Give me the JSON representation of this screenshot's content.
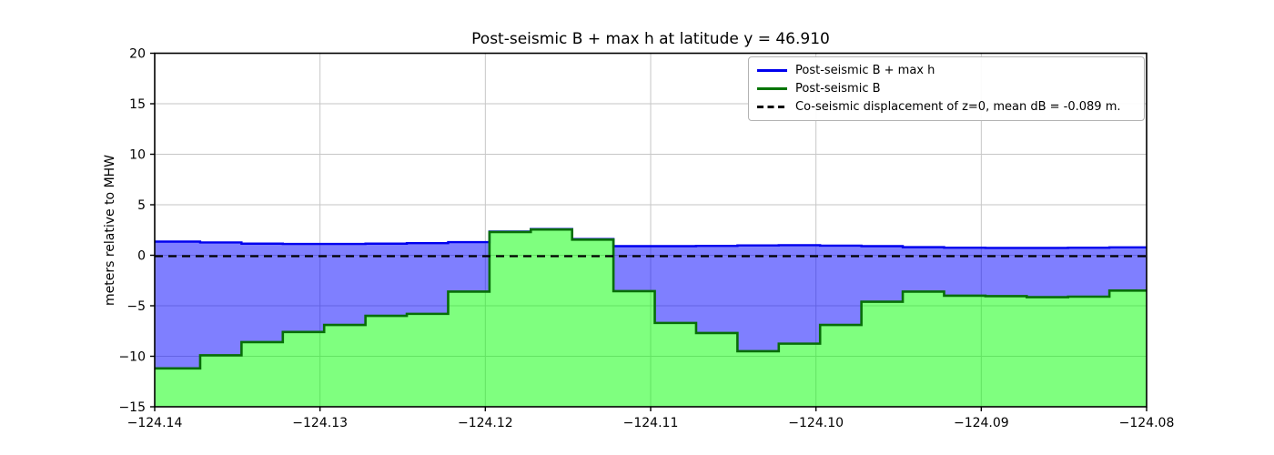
{
  "title": "Post-seismic B + max h at latitude y = 46.910",
  "ylabel": "meters relative to MHW",
  "legend": {
    "items": [
      {
        "label": "Post-seismic B + max h",
        "color": "#0000ee",
        "style": "solid"
      },
      {
        "label": "Post-seismic B",
        "color": "#007400",
        "style": "solid"
      },
      {
        "label": "Co-seismic displacement of z=0, mean dB = -0.089 m.",
        "color": "#000000",
        "style": "dashed"
      }
    ]
  },
  "chart_data": {
    "type": "area",
    "title": "Post-seismic B + max h at latitude y = 46.910",
    "xlabel": "",
    "ylabel": "meters relative to MHW",
    "xlim": [
      -124.14,
      -124.08
    ],
    "ylim": [
      -15,
      20
    ],
    "grid": true,
    "legend_position": "upper right",
    "x_tick_values": [
      -124.14,
      -124.13,
      -124.12,
      -124.11,
      -124.1,
      -124.09,
      -124.08
    ],
    "x_tick_labels": [
      "−124.14",
      "−124.13",
      "−124.12",
      "−124.11",
      "−124.10",
      "−124.09",
      "−124.08"
    ],
    "y_tick_values": [
      20,
      15,
      10,
      5,
      0,
      -5,
      -10,
      -15
    ],
    "y_tick_labels": [
      "20",
      "15",
      "10",
      "5",
      "0",
      "−5",
      "−10",
      "−15"
    ],
    "step_edges_x": [
      -124.14,
      -124.13725,
      -124.13475,
      -124.13225,
      -124.12975,
      -124.12725,
      -124.12475,
      -124.12225,
      -124.11975,
      -124.11725,
      -124.11475,
      -124.11225,
      -124.10975,
      -124.10725,
      -124.10475,
      -124.10225,
      -124.09975,
      -124.09725,
      -124.09475,
      -124.09225,
      -124.08975,
      -124.08725,
      -124.08475,
      -124.08225,
      -124.08
    ],
    "series": [
      {
        "name": "Post-seismic B + max h",
        "line_color": "#0000ee",
        "fill_color": "rgba(0,0,255,0.5)",
        "values": [
          1.35,
          1.27,
          1.15,
          1.12,
          1.12,
          1.15,
          1.2,
          1.3,
          2.35,
          2.6,
          1.6,
          0.9,
          0.9,
          0.93,
          0.97,
          1.0,
          0.95,
          0.9,
          0.8,
          0.75,
          0.73,
          0.73,
          0.75,
          0.78
        ]
      },
      {
        "name": "Post-seismic B",
        "line_color": "#076e07",
        "fill_color": "rgba(0,255,0,0.5)",
        "values": [
          -11.2,
          -9.9,
          -8.6,
          -7.6,
          -6.9,
          -6.0,
          -5.8,
          -3.6,
          2.3,
          2.55,
          1.55,
          -3.55,
          -6.7,
          -7.7,
          -9.5,
          -8.75,
          -6.9,
          -4.6,
          -3.6,
          -4.0,
          -4.05,
          -4.15,
          -4.1,
          -3.5
        ]
      }
    ],
    "dashed_line": {
      "name": "Co-seismic displacement of z=0",
      "value": -0.089,
      "mean_dB_m": -0.089,
      "color": "#000000"
    }
  }
}
